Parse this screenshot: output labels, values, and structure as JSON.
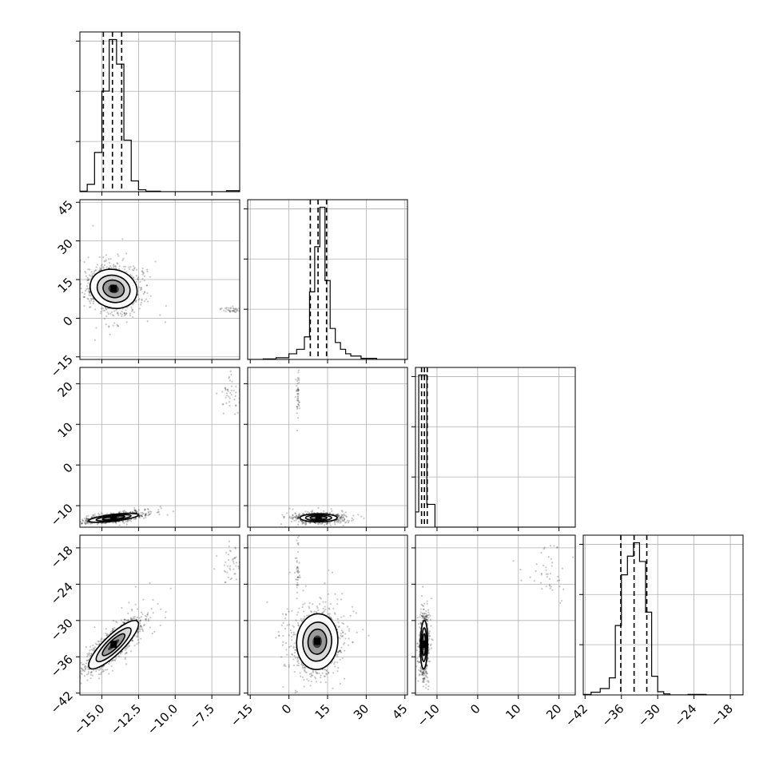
{
  "chart_data": {
    "type": "corner",
    "parameters": [
      {
        "ticks": [
          -15.0,
          -12.5,
          -10.0,
          -7.5
        ],
        "tick_labels": [
          "−15.0",
          "−12.5",
          "−10.0",
          "−7.5"
        ],
        "range": [
          -16.5,
          -5.6
        ],
        "quantiles": [
          -14.9,
          -14.28,
          -13.65
        ],
        "median": -14.28
      },
      {
        "ticks": [
          -15,
          0,
          15,
          30,
          45
        ],
        "tick_labels": [
          "−15",
          "0",
          "15",
          "30",
          "45"
        ],
        "range": [
          -16,
          46
        ],
        "quantiles": [
          8.3,
          11.3,
          14.6
        ],
        "median": 11.3
      },
      {
        "ticks": [
          -10,
          0,
          10,
          20
        ],
        "tick_labels": [
          "−10",
          "0",
          "10",
          "20"
        ],
        "range": [
          -15.3,
          24.0
        ],
        "quantiles": [
          -13.8,
          -13.1,
          -12.4
        ],
        "median": -13.1
      },
      {
        "ticks": [
          -42,
          -36,
          -30,
          -24,
          -18
        ],
        "tick_labels": [
          "−42",
          "−36",
          "−30",
          "−24",
          "−18"
        ],
        "range": [
          -42.3,
          -15.9
        ],
        "quantiles": [
          -36.1,
          -33.9,
          -31.8
        ],
        "median": -33.9
      }
    ],
    "histograms": [
      {
        "edges": [
          -16.5,
          -16.0,
          -15.5,
          -15.0,
          -14.5,
          -14.0,
          -13.5,
          -13.0,
          -12.5,
          -12.0,
          -11.5,
          -11.0,
          -10.5,
          -10.0,
          -9.5,
          -9.0,
          -8.5,
          -8.0,
          -7.5,
          -7.0,
          -6.5,
          -6.0,
          -5.6
        ],
        "counts": [
          1,
          15,
          80,
          205,
          310,
          260,
          105,
          22,
          4,
          1,
          1,
          0,
          0,
          0,
          0,
          0,
          0,
          0,
          0,
          0,
          2,
          2
        ]
      },
      {
        "edges": [
          -16,
          -10,
          -5,
          0,
          3,
          6,
          8,
          10,
          12,
          14,
          16,
          18,
          20,
          22,
          24,
          28,
          34,
          46
        ],
        "counts": [
          0,
          1,
          3,
          10,
          18,
          40,
          120,
          200,
          270,
          140,
          55,
          30,
          18,
          10,
          6,
          2,
          0
        ]
      },
      {
        "edges": [
          -15.3,
          -14.5,
          -13.5,
          -12.5,
          -10.5,
          24.0
        ],
        "counts": [
          40,
          400,
          400,
          60,
          0
        ]
      },
      {
        "edges": [
          -42.3,
          -41,
          -39.5,
          -38,
          -37,
          -36,
          -35,
          -34,
          -33,
          -32,
          -31,
          -30,
          -29,
          -28,
          -27,
          -25,
          -22,
          -20,
          -15.9
        ],
        "counts": [
          1,
          5,
          12,
          32,
          130,
          225,
          260,
          285,
          250,
          155,
          35,
          6,
          2,
          0,
          0,
          1,
          0,
          0
        ]
      }
    ],
    "pairs": [
      {
        "xi": 0,
        "yi": 1,
        "center": [
          -14.2,
          11.4
        ],
        "sigma": [
          0.8,
          3.8
        ],
        "rho": -0.12,
        "outlier": {
          "center": [
            -6.1,
            3.2
          ],
          "spread": [
            0.4,
            0.5
          ]
        }
      },
      {
        "xi": 0,
        "yi": 2,
        "center": [
          -14.2,
          -13.0
        ],
        "sigma": [
          0.85,
          0.55
        ],
        "rho": 0.65,
        "outlier": {
          "center": [
            -6.2,
            17.0
          ],
          "spread": [
            0.4,
            2.5
          ]
        }
      },
      {
        "xi": 1,
        "yi": 2,
        "center": [
          11.5,
          -13.0
        ],
        "sigma": [
          3.6,
          0.5
        ],
        "rho": 0.0,
        "outlier": {
          "center": [
            3.5,
            17.0
          ],
          "spread": [
            0.4,
            2.8
          ]
        }
      },
      {
        "xi": 0,
        "yi": 3,
        "center": [
          -14.2,
          -34.0
        ],
        "sigma": [
          0.85,
          2.0
        ],
        "rho": 0.85,
        "outlier": {
          "center": [
            -6.2,
            -20.5
          ],
          "spread": [
            0.4,
            2.0
          ]
        }
      },
      {
        "xi": 1,
        "yi": 3,
        "center": [
          11.0,
          -33.5
        ],
        "sigma": [
          4.0,
          2.3
        ],
        "rho": 0.05,
        "outlier": {
          "center": [
            3.5,
            -22.0
          ],
          "spread": [
            0.4,
            3.5
          ]
        }
      },
      {
        "xi": 2,
        "yi": 3,
        "center": [
          -13.2,
          -34.0
        ],
        "sigma": [
          0.45,
          2.0
        ],
        "rho": 0.1,
        "outlier": {
          "center": [
            17.5,
            -22.0
          ],
          "spread": [
            3.0,
            2.5
          ]
        }
      }
    ],
    "grid": true,
    "xlabel": "",
    "ylabel": ""
  }
}
